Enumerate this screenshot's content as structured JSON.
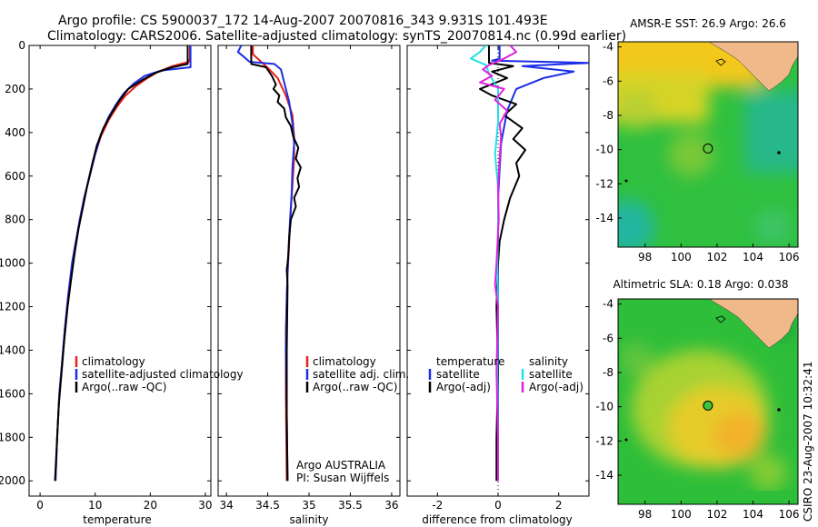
{
  "header": {
    "line1": "Argo profile: CS 5900037_172 14-Aug-2007 20070816_343 9.931S 101.493E",
    "line2": "Climatology: CARS2006. Satellite-adjusted climatology: synTS_20070814.nc (0.99d earlier)"
  },
  "side_label": "CSIRO 23-Aug-2007 10:32:41",
  "colors": {
    "red": "#e8201a",
    "blue": "#1c2ee6",
    "black": "#000000",
    "cyan": "#22e0e8",
    "magenta": "#e020e0",
    "land": "#f0b98a"
  },
  "chart_data": [
    {
      "id": "temperature",
      "type": "line",
      "xlabel": "temperature",
      "ylabel": "",
      "xlim": [
        -2,
        31
      ],
      "ylim": [
        2070,
        0
      ],
      "xticks": [
        0,
        10,
        20,
        30
      ],
      "yticks": [
        0,
        200,
        400,
        600,
        800,
        1000,
        1200,
        1400,
        1600,
        1800,
        2000
      ],
      "legend": [
        "climatology",
        "satellite-adjusted climatology",
        "Argo(..raw -QC)"
      ],
      "series": [
        {
          "name": "climatology",
          "color": "red",
          "points": [
            [
              27.2,
              0
            ],
            [
              27.2,
              60
            ],
            [
              27,
              75
            ],
            [
              24,
              95
            ],
            [
              21.5,
              120
            ],
            [
              19.5,
              150
            ],
            [
              17.5,
              185
            ],
            [
              15.5,
              230
            ],
            [
              14,
              280
            ],
            [
              12.5,
              340
            ],
            [
              11,
              420
            ],
            [
              10,
              500
            ],
            [
              9,
              600
            ],
            [
              8,
              700
            ],
            [
              7.2,
              800
            ],
            [
              6.5,
              900
            ],
            [
              5.8,
              1000
            ],
            [
              5.1,
              1150
            ],
            [
              4.5,
              1300
            ],
            [
              4,
              1450
            ],
            [
              3.5,
              1600
            ],
            [
              3.1,
              1800
            ],
            [
              2.8,
              2000
            ]
          ]
        },
        {
          "name": "satellite-adjusted climatology",
          "color": "blue",
          "points": [
            [
              27.3,
              0
            ],
            [
              27.3,
              100
            ],
            [
              22,
              115
            ],
            [
              19,
              140
            ],
            [
              17,
              175
            ],
            [
              15.2,
              220
            ],
            [
              13.8,
              270
            ],
            [
              12.4,
              330
            ],
            [
              11,
              410
            ],
            [
              10,
              500
            ],
            [
              9,
              600
            ],
            [
              8,
              700
            ],
            [
              7.2,
              800
            ],
            [
              6.5,
              900
            ],
            [
              5.8,
              1000
            ],
            [
              5.1,
              1150
            ],
            [
              4.5,
              1300
            ],
            [
              4,
              1450
            ],
            [
              3.5,
              1600
            ],
            [
              3.1,
              1800
            ],
            [
              2.8,
              2000
            ]
          ]
        },
        {
          "name": "Argo(..raw -QC)",
          "color": "black",
          "points": [
            [
              26.8,
              0
            ],
            [
              26.8,
              85
            ],
            [
              24,
              100
            ],
            [
              21,
              125
            ],
            [
              18.5,
              160
            ],
            [
              16,
              200
            ],
            [
              14.5,
              250
            ],
            [
              13,
              310
            ],
            [
              11.5,
              380
            ],
            [
              10.3,
              460
            ],
            [
              9.5,
              540
            ],
            [
              8.6,
              640
            ],
            [
              7.8,
              740
            ],
            [
              7,
              840
            ],
            [
              6.3,
              950
            ],
            [
              5.6,
              1080
            ],
            [
              5,
              1200
            ],
            [
              4.4,
              1350
            ],
            [
              3.9,
              1500
            ],
            [
              3.4,
              1650
            ],
            [
              3,
              1850
            ],
            [
              2.7,
              2000
            ]
          ]
        }
      ]
    },
    {
      "id": "salinity",
      "type": "line",
      "xlabel": "salinity",
      "ylabel": "",
      "xlim": [
        33.9,
        36.1
      ],
      "ylim": [
        2070,
        0
      ],
      "xticks": [
        34,
        34.5,
        35,
        35.5,
        36
      ],
      "xtick_labels": [
        "34",
        "34.5",
        "35",
        "35.5",
        "36"
      ],
      "yticks": [
        0,
        200,
        400,
        600,
        800,
        1000,
        1200,
        1400,
        1600,
        1800,
        2000
      ],
      "legend": [
        "climatology",
        "satellite adj. clim.",
        "Argo(..raw -QC)"
      ],
      "annotation": [
        "Argo AUSTRALIA",
        "PI: Susan Wijffels"
      ],
      "series": [
        {
          "name": "climatology",
          "color": "red",
          "points": [
            [
              34.32,
              0
            ],
            [
              34.32,
              40
            ],
            [
              34.42,
              75
            ],
            [
              34.52,
              110
            ],
            [
              34.62,
              150
            ],
            [
              34.72,
              230
            ],
            [
              34.8,
              320
            ],
            [
              34.82,
              420
            ],
            [
              34.82,
              520
            ],
            [
              34.8,
              640
            ],
            [
              34.78,
              760
            ],
            [
              34.76,
              900
            ],
            [
              34.74,
              1050
            ],
            [
              34.72,
              1300
            ],
            [
              34.72,
              1600
            ],
            [
              34.73,
              2000
            ]
          ]
        },
        {
          "name": "satellite adj. clim.",
          "color": "blue",
          "points": [
            [
              34.18,
              0
            ],
            [
              34.14,
              30
            ],
            [
              34.22,
              55
            ],
            [
              34.28,
              75
            ],
            [
              34.58,
              85
            ],
            [
              34.66,
              110
            ],
            [
              34.7,
              170
            ],
            [
              34.76,
              260
            ],
            [
              34.8,
              360
            ],
            [
              34.82,
              450
            ],
            [
              34.8,
              560
            ],
            [
              34.79,
              680
            ],
            [
              34.77,
              800
            ],
            [
              34.75,
              950
            ],
            [
              34.73,
              1150
            ],
            [
              34.72,
              1400
            ],
            [
              34.73,
              1700
            ],
            [
              34.74,
              2000
            ]
          ]
        },
        {
          "name": "Argo(..raw -QC)",
          "color": "black",
          "points": [
            [
              34.3,
              0
            ],
            [
              34.3,
              85
            ],
            [
              34.48,
              100
            ],
            [
              34.55,
              140
            ],
            [
              34.6,
              180
            ],
            [
              34.57,
              200
            ],
            [
              34.64,
              230
            ],
            [
              34.62,
              260
            ],
            [
              34.7,
              290
            ],
            [
              34.72,
              330
            ],
            [
              34.78,
              370
            ],
            [
              34.81,
              420
            ],
            [
              34.87,
              470
            ],
            [
              34.84,
              520
            ],
            [
              34.9,
              560
            ],
            [
              34.86,
              610
            ],
            [
              34.88,
              650
            ],
            [
              34.82,
              700
            ],
            [
              34.84,
              740
            ],
            [
              34.78,
              800
            ],
            [
              34.76,
              880
            ],
            [
              34.75,
              960
            ],
            [
              34.74,
              1000
            ],
            [
              34.73,
              1030
            ],
            [
              34.74,
              1100
            ],
            [
              34.73,
              1400
            ],
            [
              34.73,
              1700
            ],
            [
              34.74,
              2000
            ]
          ]
        }
      ]
    },
    {
      "id": "difference",
      "type": "line",
      "xlabel": "difference from climatology",
      "ylabel": "",
      "xlim": [
        -3,
        3
      ],
      "ylim": [
        2070,
        0
      ],
      "xticks": [
        -2,
        0,
        2
      ],
      "yticks": [
        0,
        200,
        400,
        600,
        800,
        1000,
        1200,
        1400,
        1600,
        1800,
        2000
      ],
      "legend": {
        "temperature_title": "temperature",
        "salinity_title": "salinity",
        "temperature": [
          "satellite",
          "Argo(-adj)"
        ],
        "salinity": [
          "satellite",
          "Argo(-adj)"
        ]
      },
      "series": [
        {
          "name": "temperature satellite",
          "color": "blue",
          "points": [
            [
              0.05,
              0
            ],
            [
              0.05,
              60
            ],
            [
              -0.2,
              70
            ],
            [
              3,
              80
            ],
            [
              0.8,
              95
            ],
            [
              2.5,
              120
            ],
            [
              1.5,
              150
            ],
            [
              0.6,
              200
            ],
            [
              0.3,
              300
            ],
            [
              0.1,
              450
            ],
            [
              0,
              700
            ],
            [
              0,
              1000
            ],
            [
              0,
              1500
            ],
            [
              0,
              2000
            ]
          ]
        },
        {
          "name": "temperature Argo(-adj)",
          "color": "black",
          "points": [
            [
              -0.3,
              0
            ],
            [
              -0.3,
              80
            ],
            [
              0.5,
              95
            ],
            [
              -0.2,
              120
            ],
            [
              0.3,
              150
            ],
            [
              -0.6,
              200
            ],
            [
              -0.2,
              230
            ],
            [
              0.6,
              270
            ],
            [
              0.2,
              320
            ],
            [
              0.8,
              380
            ],
            [
              0.5,
              430
            ],
            [
              0.9,
              480
            ],
            [
              0.6,
              540
            ],
            [
              0.7,
              600
            ],
            [
              0.4,
              700
            ],
            [
              0.2,
              800
            ],
            [
              0.05,
              900
            ],
            [
              0,
              1000
            ],
            [
              -0.05,
              1200
            ],
            [
              0,
              1500
            ],
            [
              -0.05,
              1800
            ],
            [
              -0.05,
              2000
            ]
          ]
        },
        {
          "name": "salinity satellite",
          "color": "cyan",
          "points": [
            [
              -0.4,
              0
            ],
            [
              -0.6,
              30
            ],
            [
              -0.9,
              60
            ],
            [
              -0.4,
              90
            ],
            [
              -0.3,
              130
            ],
            [
              0,
              200
            ],
            [
              0,
              350
            ],
            [
              -0.1,
              500
            ],
            [
              0,
              650
            ],
            [
              0,
              800
            ],
            [
              -0.02,
              1000
            ],
            [
              0,
              1200
            ],
            [
              -0.02,
              1500
            ],
            [
              0,
              1800
            ],
            [
              0,
              2000
            ]
          ]
        },
        {
          "name": "salinity Argo(-adj)",
          "color": "magenta",
          "points": [
            [
              0.4,
              0
            ],
            [
              0.6,
              30
            ],
            [
              0.2,
              60
            ],
            [
              -0.3,
              90
            ],
            [
              -0.5,
              110
            ],
            [
              -0.2,
              140
            ],
            [
              -0.6,
              170
            ],
            [
              0.2,
              200
            ],
            [
              -0.1,
              250
            ],
            [
              0.3,
              300
            ],
            [
              0.05,
              360
            ],
            [
              0.1,
              420
            ],
            [
              0.05,
              520
            ],
            [
              0,
              650
            ],
            [
              0.02,
              800
            ],
            [
              -0.05,
              1000
            ],
            [
              -0.1,
              1100
            ],
            [
              0,
              1200
            ],
            [
              -0.05,
              1500
            ],
            [
              0,
              1800
            ],
            [
              0,
              2000
            ]
          ]
        }
      ]
    },
    {
      "id": "sst_map",
      "type": "heatmap",
      "title": "AMSR-E SST: 26.9 Argo: 26.6",
      "xlim": [
        96.5,
        106.5
      ],
      "ylim": [
        -15.7,
        -3.7
      ],
      "xticks": [
        98,
        100,
        102,
        104,
        106
      ],
      "yticks": [
        -4,
        -6,
        -8,
        -10,
        -12,
        -14
      ],
      "argo_position": [
        101.493,
        -9.931
      ],
      "marker_color": "none"
    },
    {
      "id": "sla_map",
      "type": "heatmap",
      "title": "Altimetric SLA: 0.18 Argo: 0.038",
      "xlim": [
        96.5,
        106.5
      ],
      "ylim": [
        -15.7,
        -3.7
      ],
      "xticks": [
        98,
        100,
        102,
        104,
        106
      ],
      "yticks": [
        -4,
        -6,
        -8,
        -10,
        -12,
        -14
      ],
      "argo_position": [
        101.493,
        -9.931
      ],
      "marker_color": "#3cc43c"
    }
  ]
}
